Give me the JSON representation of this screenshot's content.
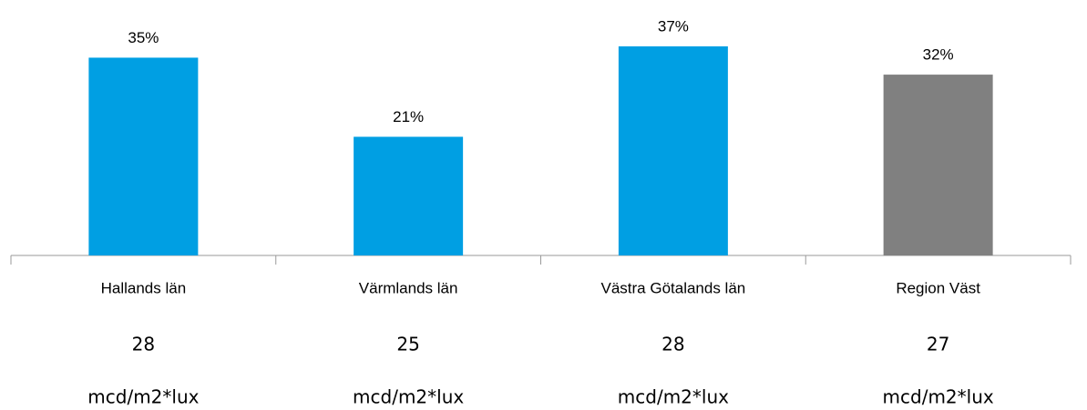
{
  "chart_data": {
    "type": "bar",
    "categories": [
      "Hallands län",
      "Värmlands län",
      "Västra Götalands län",
      "Region Väst"
    ],
    "values": [
      35,
      21,
      37,
      32
    ],
    "value_labels": [
      "35%",
      "21%",
      "37%",
      "32%"
    ],
    "colors": [
      "#009fe3",
      "#009fe3",
      "#009fe3",
      "#808080"
    ],
    "sub_values": [
      28,
      25,
      28,
      27
    ],
    "sub_units": [
      "mcd/m2*lux",
      "mcd/m2*lux",
      "mcd/m2*lux",
      "mcd/m2*lux"
    ]
  }
}
